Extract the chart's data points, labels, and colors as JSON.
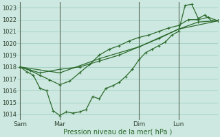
{
  "bg_color": "#cce8e0",
  "grid_color": "#99ccbb",
  "line_color": "#2d6a2d",
  "xlabel": "Pression niveau de la mer( hPa )",
  "ylim": [
    1013.5,
    1023.5
  ],
  "yticks": [
    1014,
    1015,
    1016,
    1017,
    1018,
    1019,
    1020,
    1021,
    1022,
    1023
  ],
  "xtick_labels": [
    "Sam",
    "Mar",
    "Dim",
    "Lun"
  ],
  "xtick_positions": [
    0,
    72,
    216,
    288
  ],
  "xlim": [
    -5,
    360
  ],
  "vlines": [
    0,
    72,
    216,
    288
  ],
  "line1_x": [
    0,
    12,
    24,
    36,
    48,
    60,
    72,
    84,
    96,
    108,
    120,
    132,
    144,
    156,
    168,
    180,
    192,
    204,
    216,
    228,
    240,
    252,
    264,
    276,
    288,
    300,
    312,
    324,
    336,
    348,
    360
  ],
  "line1_y": [
    1018.0,
    1017.6,
    1017.3,
    1016.2,
    1016.0,
    1014.3,
    1013.9,
    1014.2,
    1014.1,
    1014.2,
    1014.4,
    1015.5,
    1015.3,
    1016.2,
    1016.4,
    1016.7,
    1017.2,
    1017.8,
    1018.6,
    1019.2,
    1019.5,
    1019.8,
    1020.1,
    1020.7,
    1021.0,
    1023.2,
    1023.3,
    1022.1,
    1022.4,
    1021.9,
    1021.9
  ],
  "line2_x": [
    0,
    36,
    72,
    108,
    144,
    180,
    216,
    252,
    288,
    324,
    360
  ],
  "line2_y": [
    1018.0,
    1017.5,
    1017.8,
    1018.0,
    1018.5,
    1019.0,
    1019.7,
    1020.4,
    1021.2,
    1021.8,
    1021.9
  ],
  "line3_x": [
    0,
    72,
    144,
    216,
    288,
    360
  ],
  "line3_y": [
    1018.0,
    1017.5,
    1018.7,
    1019.7,
    1021.2,
    1021.9
  ],
  "line4_x": [
    0,
    18,
    36,
    54,
    72,
    90,
    108,
    126,
    144,
    162,
    180,
    198,
    216,
    234,
    252,
    270,
    288,
    306,
    324,
    342,
    360
  ],
  "line4_y": [
    1018.0,
    1017.7,
    1017.3,
    1016.9,
    1016.5,
    1016.8,
    1017.5,
    1018.2,
    1019.0,
    1019.5,
    1019.8,
    1020.2,
    1020.5,
    1020.7,
    1021.0,
    1021.3,
    1021.5,
    1022.0,
    1022.0,
    1022.2,
    1021.9
  ]
}
